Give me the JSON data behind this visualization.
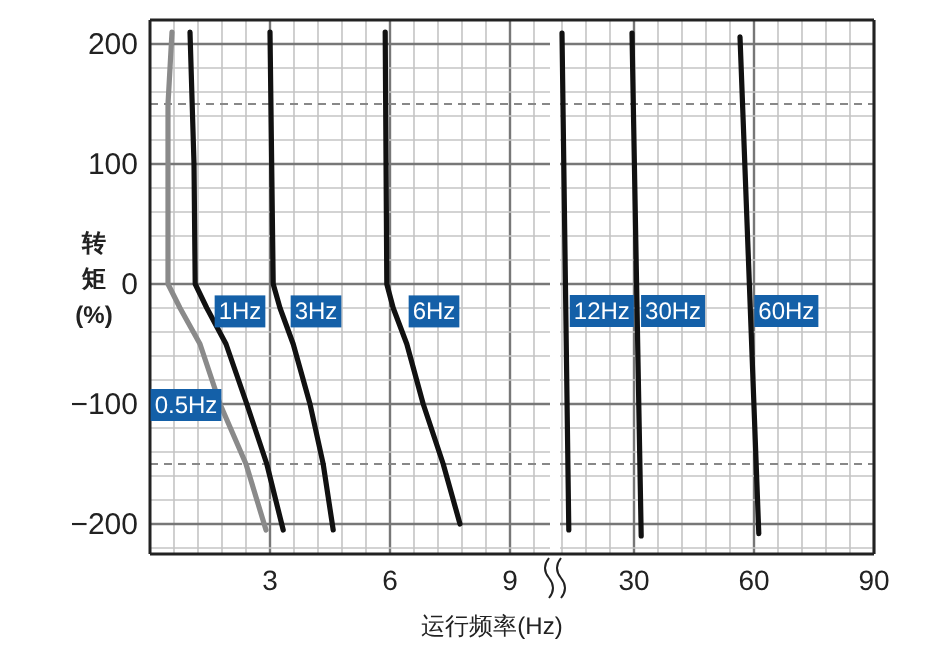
{
  "chart_data": [
    {
      "type": "line",
      "xlabel": "运行频率(Hz)",
      "ylabel": "转矩(%)",
      "xlim": [
        0,
        10
      ],
      "xticks": [
        3,
        6,
        9
      ],
      "ylim": [
        -225,
        220
      ],
      "yticks": [
        -200,
        -100,
        0,
        100,
        200
      ],
      "grid": true,
      "series": [
        {
          "color": "#8a8a8a",
          "x": [
            0.55,
            0.45,
            0.45,
            0.45,
            0.45,
            0.6,
            0.75,
            1.25,
            1.75,
            2.4,
            2.9
          ],
          "values": [
            210,
            150,
            100,
            50,
            0,
            -10,
            -20,
            -50,
            -100,
            -150,
            -205
          ]
        },
        {
          "color": "#111111",
          "x": [
            1.0,
            1.1,
            1.13,
            1.42,
            1.9,
            2.42,
            2.92,
            3.33
          ],
          "values": [
            210,
            100,
            0,
            -20,
            -50,
            -100,
            -150,
            -205
          ]
        },
        {
          "color": "#111111",
          "x": [
            3.0,
            3.08,
            3.25,
            3.58,
            4.0,
            4.33,
            4.58
          ],
          "values": [
            210,
            0,
            -20,
            -50,
            -100,
            -150,
            -205
          ]
        },
        {
          "color": "#111111",
          "x": [
            5.88,
            5.92,
            6.08,
            6.42,
            6.83,
            7.33,
            7.75
          ],
          "values": [
            210,
            0,
            -20,
            -50,
            -100,
            -150,
            -200
          ]
        }
      ],
      "ref_lines": [
        {
          "axis": "y",
          "value": 150,
          "color": "#888888",
          "line_style": "dashed"
        },
        {
          "axis": "y",
          "value": -150,
          "color": "#888888",
          "line_style": "dashed"
        }
      ],
      "annotations": [
        {
          "text": "0.5Hz",
          "x": 0.9,
          "y": -100
        },
        {
          "text": "1Hz",
          "x": 2.25,
          "y": -22
        },
        {
          "text": "3Hz",
          "x": 4.15,
          "y": -22
        },
        {
          "text": "6Hz",
          "x": 7.1,
          "y": -22
        }
      ]
    },
    {
      "type": "line",
      "tick_labels": "x",
      "xlim": [
        11.5,
        90
      ],
      "xticks": [
        30,
        60,
        90
      ],
      "ylim": [
        -225,
        220
      ],
      "yticks": [
        -200,
        -100,
        0,
        100,
        200
      ],
      "grid": true,
      "series": [
        {
          "name": "12Hz",
          "color": "#111111",
          "x": [
            12,
            13.7
          ],
          "values": [
            209,
            -205
          ]
        },
        {
          "name": "30Hz",
          "color": "#111111",
          "x": [
            29.5,
            31.8
          ],
          "values": [
            209,
            -210
          ]
        },
        {
          "name": "60Hz",
          "color": "#111111",
          "x": [
            56.5,
            61.2
          ],
          "values": [
            206,
            -208
          ]
        }
      ],
      "ref_lines": [
        {
          "axis": "y",
          "value": 150,
          "color": "#888888",
          "line_style": "dashed"
        },
        {
          "axis": "y",
          "value": -150,
          "color": "#888888",
          "line_style": "dashed"
        }
      ]
    }
  ]
}
